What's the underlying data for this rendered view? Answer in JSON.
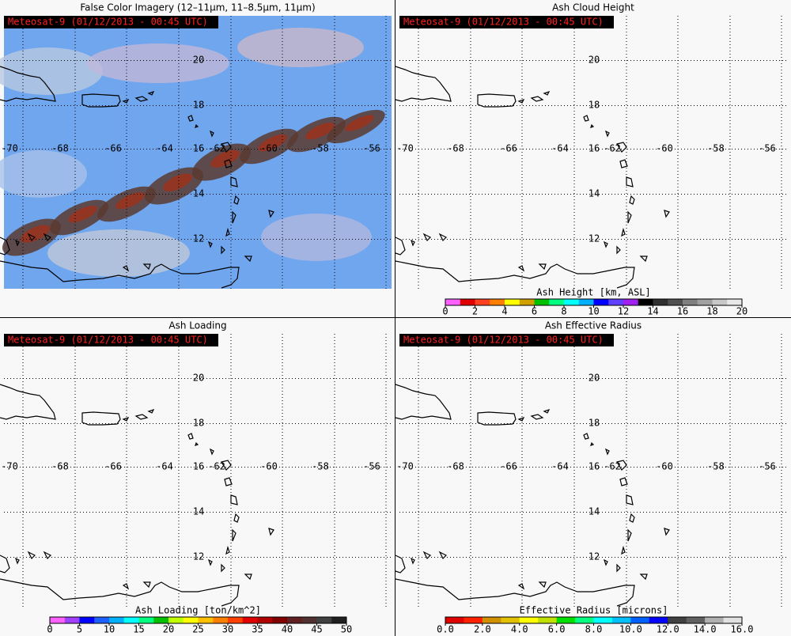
{
  "panels": [
    {
      "title": "False Color Imagery (12–11μm, 11–8.5μm, 11μm)",
      "stamp": "Meteosat-9  (01/12/2013 - 00:45 UTC)",
      "lon_labels": [
        "-70",
        "-68",
        "-66",
        "-64",
        "-62",
        "-60",
        "-58",
        "-56"
      ],
      "lat_labels": [
        "20",
        "18",
        "16",
        "14",
        "12"
      ]
    },
    {
      "title": "Ash Cloud Height",
      "stamp": "Meteosat-9  (01/12/2013 - 00:45 UTC)",
      "lon_labels": [
        "-70",
        "-68",
        "-66",
        "-64",
        "-62",
        "-60",
        "-58",
        "-56"
      ],
      "lat_labels": [
        "20",
        "18",
        "16",
        "14",
        "12"
      ],
      "colorbar": {
        "label": "Ash Height [km, ASL]",
        "ticks": [
          "0",
          "2",
          "4",
          "6",
          "8",
          "10",
          "12",
          "14",
          "16",
          "18",
          "20"
        ],
        "colors": [
          "#ff60ff",
          "#e00000",
          "#ff4020",
          "#ff8000",
          "#ffff00",
          "#d0a000",
          "#00c000",
          "#00ff80",
          "#00ffff",
          "#00b0ff",
          "#0000ff",
          "#6040ff",
          "#a020f0",
          "#000000",
          "#303030",
          "#505050",
          "#808080",
          "#a0a0a0",
          "#c8c8c8",
          "#e8e8e8"
        ]
      }
    },
    {
      "title": "Ash Loading",
      "stamp": "Meteosat-9  (01/12/2013 - 00:45 UTC)",
      "lon_labels": [
        "-70",
        "-68",
        "-66",
        "-64",
        "-62",
        "-60",
        "-58",
        "-56"
      ],
      "lat_labels": [
        "20",
        "18",
        "16",
        "14",
        "12"
      ],
      "colorbar": {
        "label": "Ash Loading [ton/km^2]",
        "ticks": [
          "0",
          "5",
          "10",
          "15",
          "20",
          "25",
          "30",
          "35",
          "40",
          "45",
          "50"
        ],
        "colors": [
          "#ff60ff",
          "#a040ff",
          "#0000ff",
          "#2060ff",
          "#00b0ff",
          "#00ffff",
          "#00ff80",
          "#00c000",
          "#c0ff00",
          "#ffff00",
          "#ffc000",
          "#ff8000",
          "#ff4000",
          "#e00000",
          "#b00000",
          "#800000",
          "#602020",
          "#503030",
          "#404040",
          "#202020"
        ]
      }
    },
    {
      "title": "Ash Effective Radius",
      "stamp": "Meteosat-9  (01/12/2013 - 00:45 UTC)",
      "lon_labels": [
        "-70",
        "-68",
        "-66",
        "-64",
        "-62",
        "-60",
        "-58",
        "-56"
      ],
      "lat_labels": [
        "20",
        "18",
        "16",
        "14",
        "12"
      ],
      "colorbar": {
        "label": "Effective Radius [microns]",
        "ticks": [
          "0.0",
          "2.0",
          "4.0",
          "6.0",
          "8.0",
          "10.0",
          "12.0",
          "14.0",
          "16.0"
        ],
        "colors": [
          "#e00000",
          "#ff2000",
          "#d09000",
          "#e0c000",
          "#ffff00",
          "#c0e000",
          "#00e000",
          "#00ff80",
          "#00ffff",
          "#00c0ff",
          "#0060ff",
          "#0000ff",
          "#404040",
          "#606060",
          "#b0b0b0",
          "#e0e0e0"
        ]
      }
    }
  ]
}
